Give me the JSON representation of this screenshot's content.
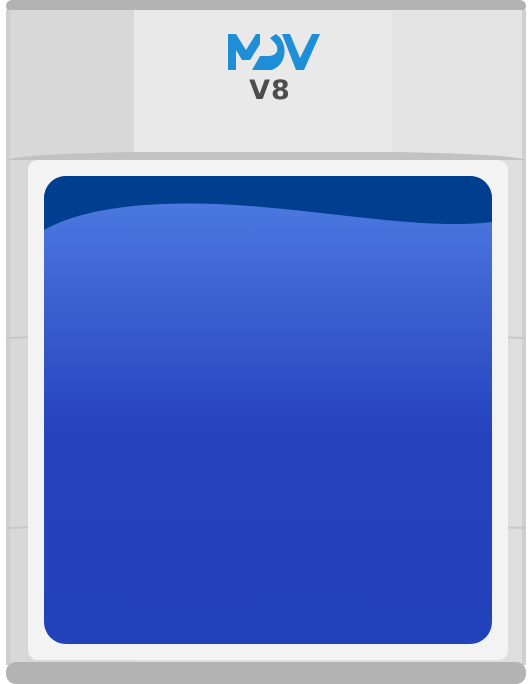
{
  "brand": {
    "logo_text": "MDV",
    "version": "V8"
  },
  "colors": {
    "casing": "#dcdcdc",
    "casing_light": "#e8e8e8",
    "rail": "#b3b3b3",
    "frame": "#f2f2f2",
    "screen_top": "#003f8f",
    "screen_wave": "#4f7de2",
    "screen_bottom": "#2343bb",
    "logo": "#1e8ed6",
    "version_text": "#4d4d4d"
  },
  "icons": {
    "logo": "mdv-logo-icon"
  }
}
